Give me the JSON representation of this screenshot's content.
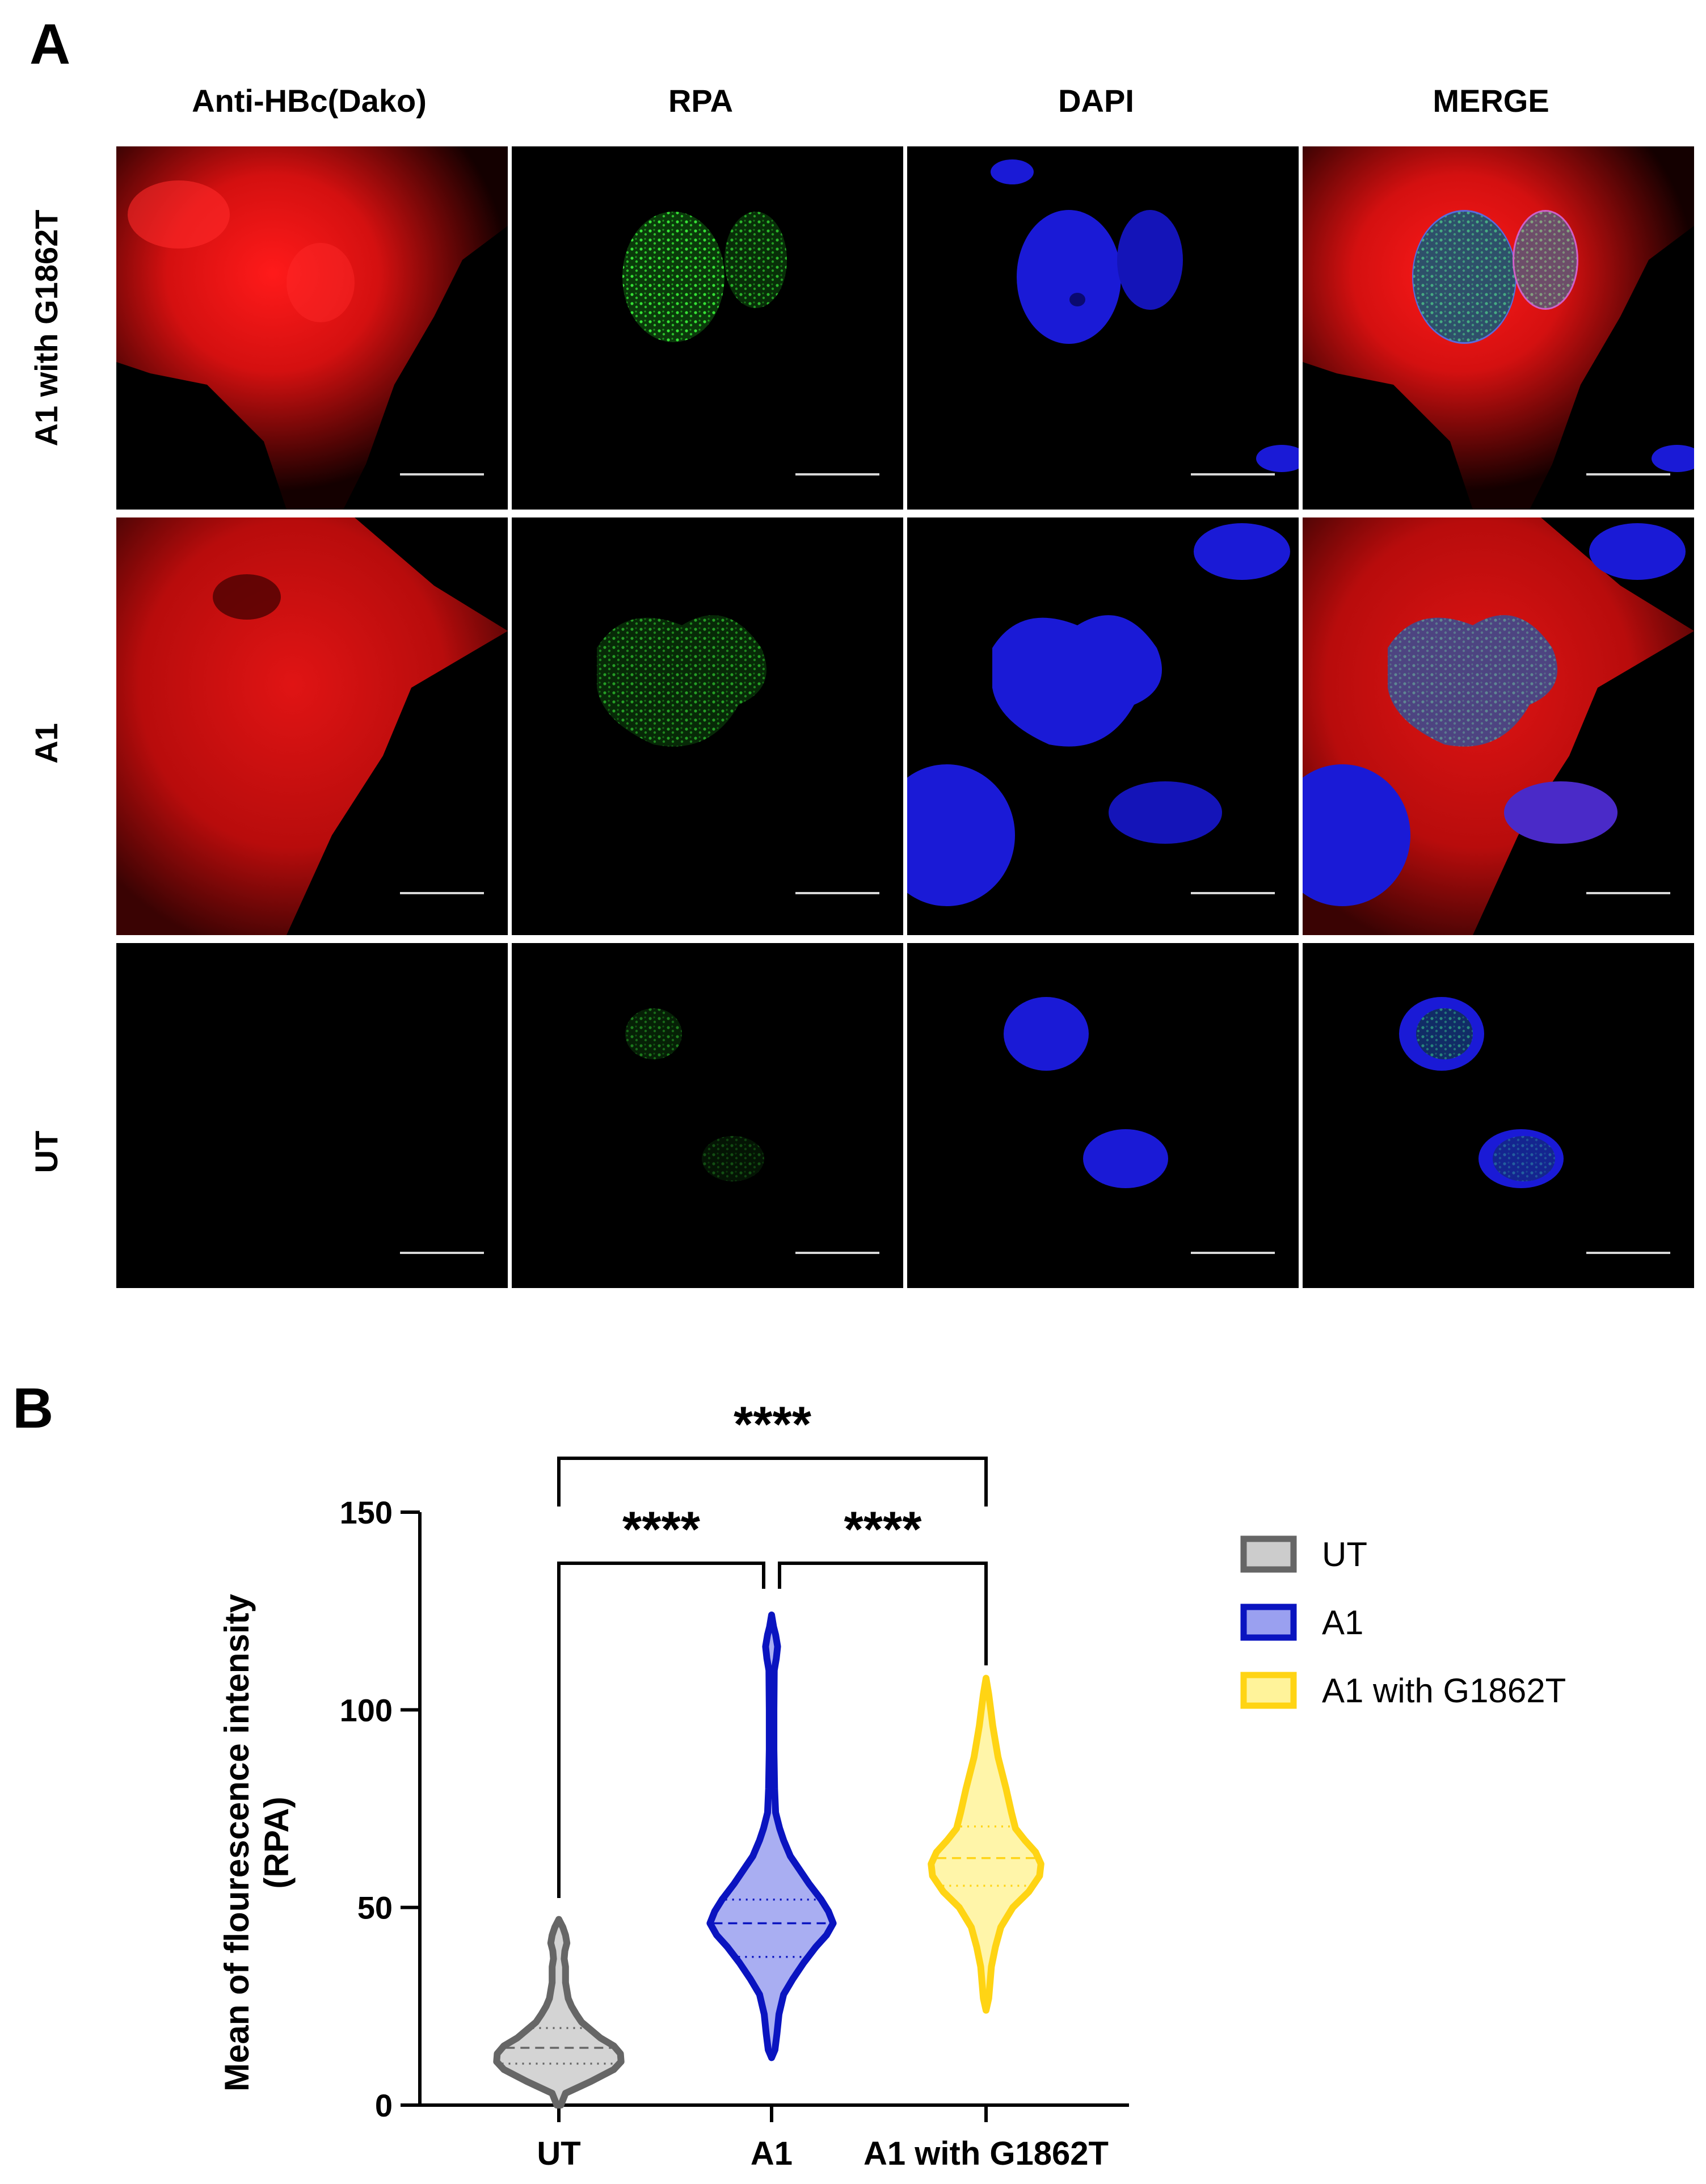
{
  "panel_a": {
    "letter": "A",
    "columns": [
      "Anti-HBc(Dako)",
      "RPA",
      "DAPI",
      "MERGE"
    ],
    "rows": [
      "A1 with G1862T",
      "A1",
      "UT"
    ]
  },
  "panel_b": {
    "letter": "B"
  },
  "chart_data": {
    "type": "violin",
    "categories": [
      "UT",
      "A1",
      "A1 with G1862T"
    ],
    "ylabel": [
      "Mean of flourescence intensity",
      "(RPA)"
    ],
    "xlabel": "",
    "ylim": [
      0,
      150
    ],
    "yticks": [
      0,
      50,
      100,
      150
    ],
    "legend": {
      "placement": "right",
      "entries": [
        "UT",
        "A1",
        "A1 with G1862T"
      ]
    },
    "colors": {
      "UT": {
        "stroke": "#666666",
        "fill": "#cccccc"
      },
      "A1": {
        "stroke": "#0a14c0",
        "fill": "#9aa0f0"
      },
      "A1 with G1862T": {
        "stroke": "#ffd414",
        "fill": "#fff39a"
      }
    },
    "series": [
      {
        "category": "UT",
        "min": 0,
        "max": 47,
        "median": 14.5,
        "q1": 10.5,
        "q3": 19.5,
        "density": [
          [
            0,
            0.03
          ],
          [
            3,
            0.1
          ],
          [
            6,
            0.48
          ],
          [
            9,
            0.82
          ],
          [
            11,
            0.93
          ],
          [
            13,
            0.92
          ],
          [
            15,
            0.82
          ],
          [
            17,
            0.62
          ],
          [
            19,
            0.48
          ],
          [
            21,
            0.34
          ],
          [
            23,
            0.26
          ],
          [
            25,
            0.19
          ],
          [
            27,
            0.14
          ],
          [
            29,
            0.12
          ],
          [
            31,
            0.1
          ],
          [
            33,
            0.1
          ],
          [
            35,
            0.1
          ],
          [
            37,
            0.08
          ],
          [
            39,
            0.09
          ],
          [
            41,
            0.12
          ],
          [
            43,
            0.1
          ],
          [
            45,
            0.06
          ],
          [
            47,
            0
          ]
        ]
      },
      {
        "category": "A1",
        "min": 12,
        "max": 124,
        "median": 46,
        "q1": 37.5,
        "q3": 52,
        "density": [
          [
            12,
            0
          ],
          [
            14,
            0.05
          ],
          [
            18,
            0.08
          ],
          [
            23,
            0.11
          ],
          [
            28,
            0.18
          ],
          [
            32,
            0.32
          ],
          [
            36,
            0.48
          ],
          [
            40,
            0.66
          ],
          [
            43,
            0.82
          ],
          [
            46,
            0.92
          ],
          [
            49,
            0.85
          ],
          [
            52,
            0.74
          ],
          [
            56,
            0.56
          ],
          [
            60,
            0.4
          ],
          [
            63,
            0.28
          ],
          [
            67,
            0.18
          ],
          [
            70,
            0.12
          ],
          [
            74,
            0.06
          ],
          [
            80,
            0.045
          ],
          [
            90,
            0.035
          ],
          [
            100,
            0.035
          ],
          [
            110,
            0.04
          ],
          [
            113,
            0.07
          ],
          [
            116,
            0.09
          ],
          [
            119,
            0.06
          ],
          [
            121,
            0.03
          ],
          [
            124,
            0
          ]
        ]
      },
      {
        "category": "A1 with G1862T",
        "min": 24,
        "max": 108,
        "median": 62.5,
        "q1": 55.5,
        "q3": 70.5,
        "density": [
          [
            24,
            0
          ],
          [
            27,
            0.04
          ],
          [
            31,
            0.06
          ],
          [
            35,
            0.08
          ],
          [
            40,
            0.14
          ],
          [
            45,
            0.22
          ],
          [
            50,
            0.4
          ],
          [
            54,
            0.64
          ],
          [
            58,
            0.8
          ],
          [
            61,
            0.82
          ],
          [
            64,
            0.74
          ],
          [
            67,
            0.58
          ],
          [
            70,
            0.44
          ],
          [
            74,
            0.38
          ],
          [
            77,
            0.34
          ],
          [
            80,
            0.3
          ],
          [
            84,
            0.24
          ],
          [
            88,
            0.18
          ],
          [
            92,
            0.14
          ],
          [
            96,
            0.1
          ],
          [
            100,
            0.07
          ],
          [
            104,
            0.04
          ],
          [
            108,
            0
          ]
        ]
      }
    ],
    "significance": [
      {
        "from": "UT",
        "to": "A1",
        "label": "****"
      },
      {
        "from": "A1",
        "to": "A1 with G1862T",
        "label": "****"
      },
      {
        "from": "UT",
        "to": "A1 with G1862T",
        "label": "****"
      }
    ]
  }
}
